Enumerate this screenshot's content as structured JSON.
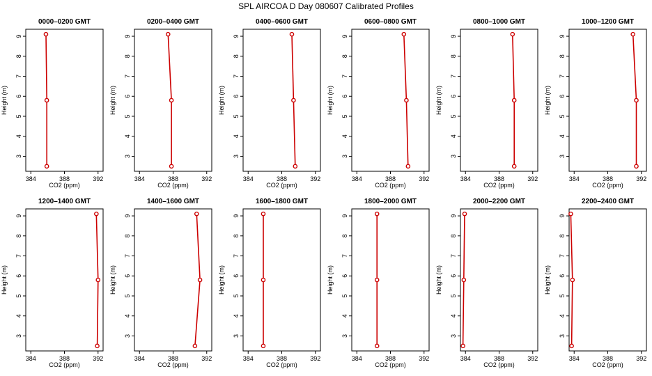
{
  "title": "SPL AIRCOA D  Day 080607  Calibrated Profiles",
  "chart_data": [
    {
      "type": "line",
      "title": "0000–0200 GMT",
      "xlabel": "CO2 (ppm)",
      "ylabel": "Height (m)",
      "color": "#cc0000",
      "x": [
        385.9,
        385.9,
        385.8
      ],
      "values": [
        2.5,
        5.8,
        9.1
      ],
      "xlim": [
        383.4,
        392.6
      ],
      "xticks": [
        384,
        388,
        392
      ],
      "ylim": [
        2.25,
        9.35
      ],
      "yticks": [
        3,
        4,
        5,
        6,
        7,
        8,
        9
      ]
    },
    {
      "type": "line",
      "title": "0200–0400 GMT",
      "xlabel": "CO2 (ppm)",
      "ylabel": "Height (m)",
      "color": "#cc0000",
      "x": [
        387.8,
        387.8,
        387.4
      ],
      "values": [
        2.5,
        5.8,
        9.1
      ],
      "xlim": [
        383.4,
        392.6
      ],
      "xticks": [
        384,
        388,
        392
      ],
      "ylim": [
        2.25,
        9.35
      ],
      "yticks": [
        3,
        4,
        5,
        6,
        7,
        8,
        9
      ]
    },
    {
      "type": "line",
      "title": "0400–0600 GMT",
      "xlabel": "CO2 (ppm)",
      "ylabel": "Height (m)",
      "color": "#cc0000",
      "x": [
        389.6,
        389.4,
        389.2
      ],
      "values": [
        2.5,
        5.8,
        9.1
      ],
      "xlim": [
        383.4,
        392.6
      ],
      "xticks": [
        384,
        388,
        392
      ],
      "ylim": [
        2.25,
        9.35
      ],
      "yticks": [
        3,
        4,
        5,
        6,
        7,
        8,
        9
      ]
    },
    {
      "type": "line",
      "title": "0600–0800 GMT",
      "xlabel": "CO2 (ppm)",
      "ylabel": "Height (m)",
      "color": "#cc0000",
      "x": [
        390.1,
        389.9,
        389.6
      ],
      "values": [
        2.5,
        5.8,
        9.1
      ],
      "xlim": [
        383.4,
        392.6
      ],
      "xticks": [
        384,
        388,
        392
      ],
      "ylim": [
        2.25,
        9.35
      ],
      "yticks": [
        3,
        4,
        5,
        6,
        7,
        8,
        9
      ]
    },
    {
      "type": "line",
      "title": "0800–1000 GMT",
      "xlabel": "CO2 (ppm)",
      "ylabel": "Height (m)",
      "color": "#cc0000",
      "x": [
        389.8,
        389.8,
        389.6
      ],
      "values": [
        2.5,
        5.8,
        9.1
      ],
      "xlim": [
        383.4,
        392.6
      ],
      "xticks": [
        384,
        388,
        392
      ],
      "ylim": [
        2.25,
        9.35
      ],
      "yticks": [
        3,
        4,
        5,
        6,
        7,
        8,
        9
      ]
    },
    {
      "type": "line",
      "title": "1000–1200 GMT",
      "xlabel": "CO2 (ppm)",
      "ylabel": "Height (m)",
      "color": "#cc0000",
      "x": [
        391.4,
        391.4,
        391.0
      ],
      "values": [
        2.5,
        5.8,
        9.1
      ],
      "xlim": [
        383.4,
        392.6
      ],
      "xticks": [
        384,
        388,
        392
      ],
      "ylim": [
        2.25,
        9.35
      ],
      "yticks": [
        3,
        4,
        5,
        6,
        7,
        8,
        9
      ]
    },
    {
      "type": "line",
      "title": "1200–1400 GMT",
      "xlabel": "CO2 (ppm)",
      "ylabel": "Height (m)",
      "color": "#cc0000",
      "x": [
        391.9,
        392.0,
        391.8
      ],
      "values": [
        2.5,
        5.8,
        9.1
      ],
      "xlim": [
        383.4,
        392.6
      ],
      "xticks": [
        384,
        388,
        392
      ],
      "ylim": [
        2.25,
        9.35
      ],
      "yticks": [
        3,
        4,
        5,
        6,
        7,
        8,
        9
      ]
    },
    {
      "type": "line",
      "title": "1400–1600 GMT",
      "xlabel": "CO2 (ppm)",
      "ylabel": "Height (m)",
      "color": "#cc0000",
      "x": [
        390.6,
        391.2,
        390.8
      ],
      "values": [
        2.5,
        5.8,
        9.1
      ],
      "xlim": [
        383.4,
        392.6
      ],
      "xticks": [
        384,
        388,
        392
      ],
      "ylim": [
        2.25,
        9.35
      ],
      "yticks": [
        3,
        4,
        5,
        6,
        7,
        8,
        9
      ]
    },
    {
      "type": "line",
      "title": "1600–1800 GMT",
      "xlabel": "CO2 (ppm)",
      "ylabel": "Height (m)",
      "color": "#cc0000",
      "x": [
        385.8,
        385.8,
        385.8
      ],
      "values": [
        2.5,
        5.8,
        9.1
      ],
      "xlim": [
        383.4,
        392.6
      ],
      "xticks": [
        384,
        388,
        392
      ],
      "ylim": [
        2.25,
        9.35
      ],
      "yticks": [
        3,
        4,
        5,
        6,
        7,
        8,
        9
      ]
    },
    {
      "type": "line",
      "title": "1800–2000 GMT",
      "xlabel": "CO2 (ppm)",
      "ylabel": "Height (m)",
      "color": "#cc0000",
      "x": [
        386.4,
        386.4,
        386.4
      ],
      "values": [
        2.5,
        5.8,
        9.1
      ],
      "xlim": [
        383.4,
        392.6
      ],
      "xticks": [
        384,
        388,
        392
      ],
      "ylim": [
        2.25,
        9.35
      ],
      "yticks": [
        3,
        4,
        5,
        6,
        7,
        8,
        9
      ]
    },
    {
      "type": "line",
      "title": "2000–2200 GMT",
      "xlabel": "CO2 (ppm)",
      "ylabel": "Height (m)",
      "color": "#cc0000",
      "x": [
        383.7,
        383.8,
        383.9
      ],
      "values": [
        2.5,
        5.8,
        9.1
      ],
      "xlim": [
        383.4,
        392.6
      ],
      "xticks": [
        384,
        388,
        392
      ],
      "ylim": [
        2.25,
        9.35
      ],
      "yticks": [
        3,
        4,
        5,
        6,
        7,
        8,
        9
      ]
    },
    {
      "type": "line",
      "title": "2200–2400 GMT",
      "xlabel": "CO2 (ppm)",
      "ylabel": "Height (m)",
      "color": "#cc0000",
      "x": [
        383.7,
        383.8,
        383.6
      ],
      "values": [
        2.5,
        5.8,
        9.1
      ],
      "xlim": [
        383.4,
        392.6
      ],
      "xticks": [
        384,
        388,
        392
      ],
      "ylim": [
        2.25,
        9.35
      ],
      "yticks": [
        3,
        4,
        5,
        6,
        7,
        8,
        9
      ]
    }
  ]
}
